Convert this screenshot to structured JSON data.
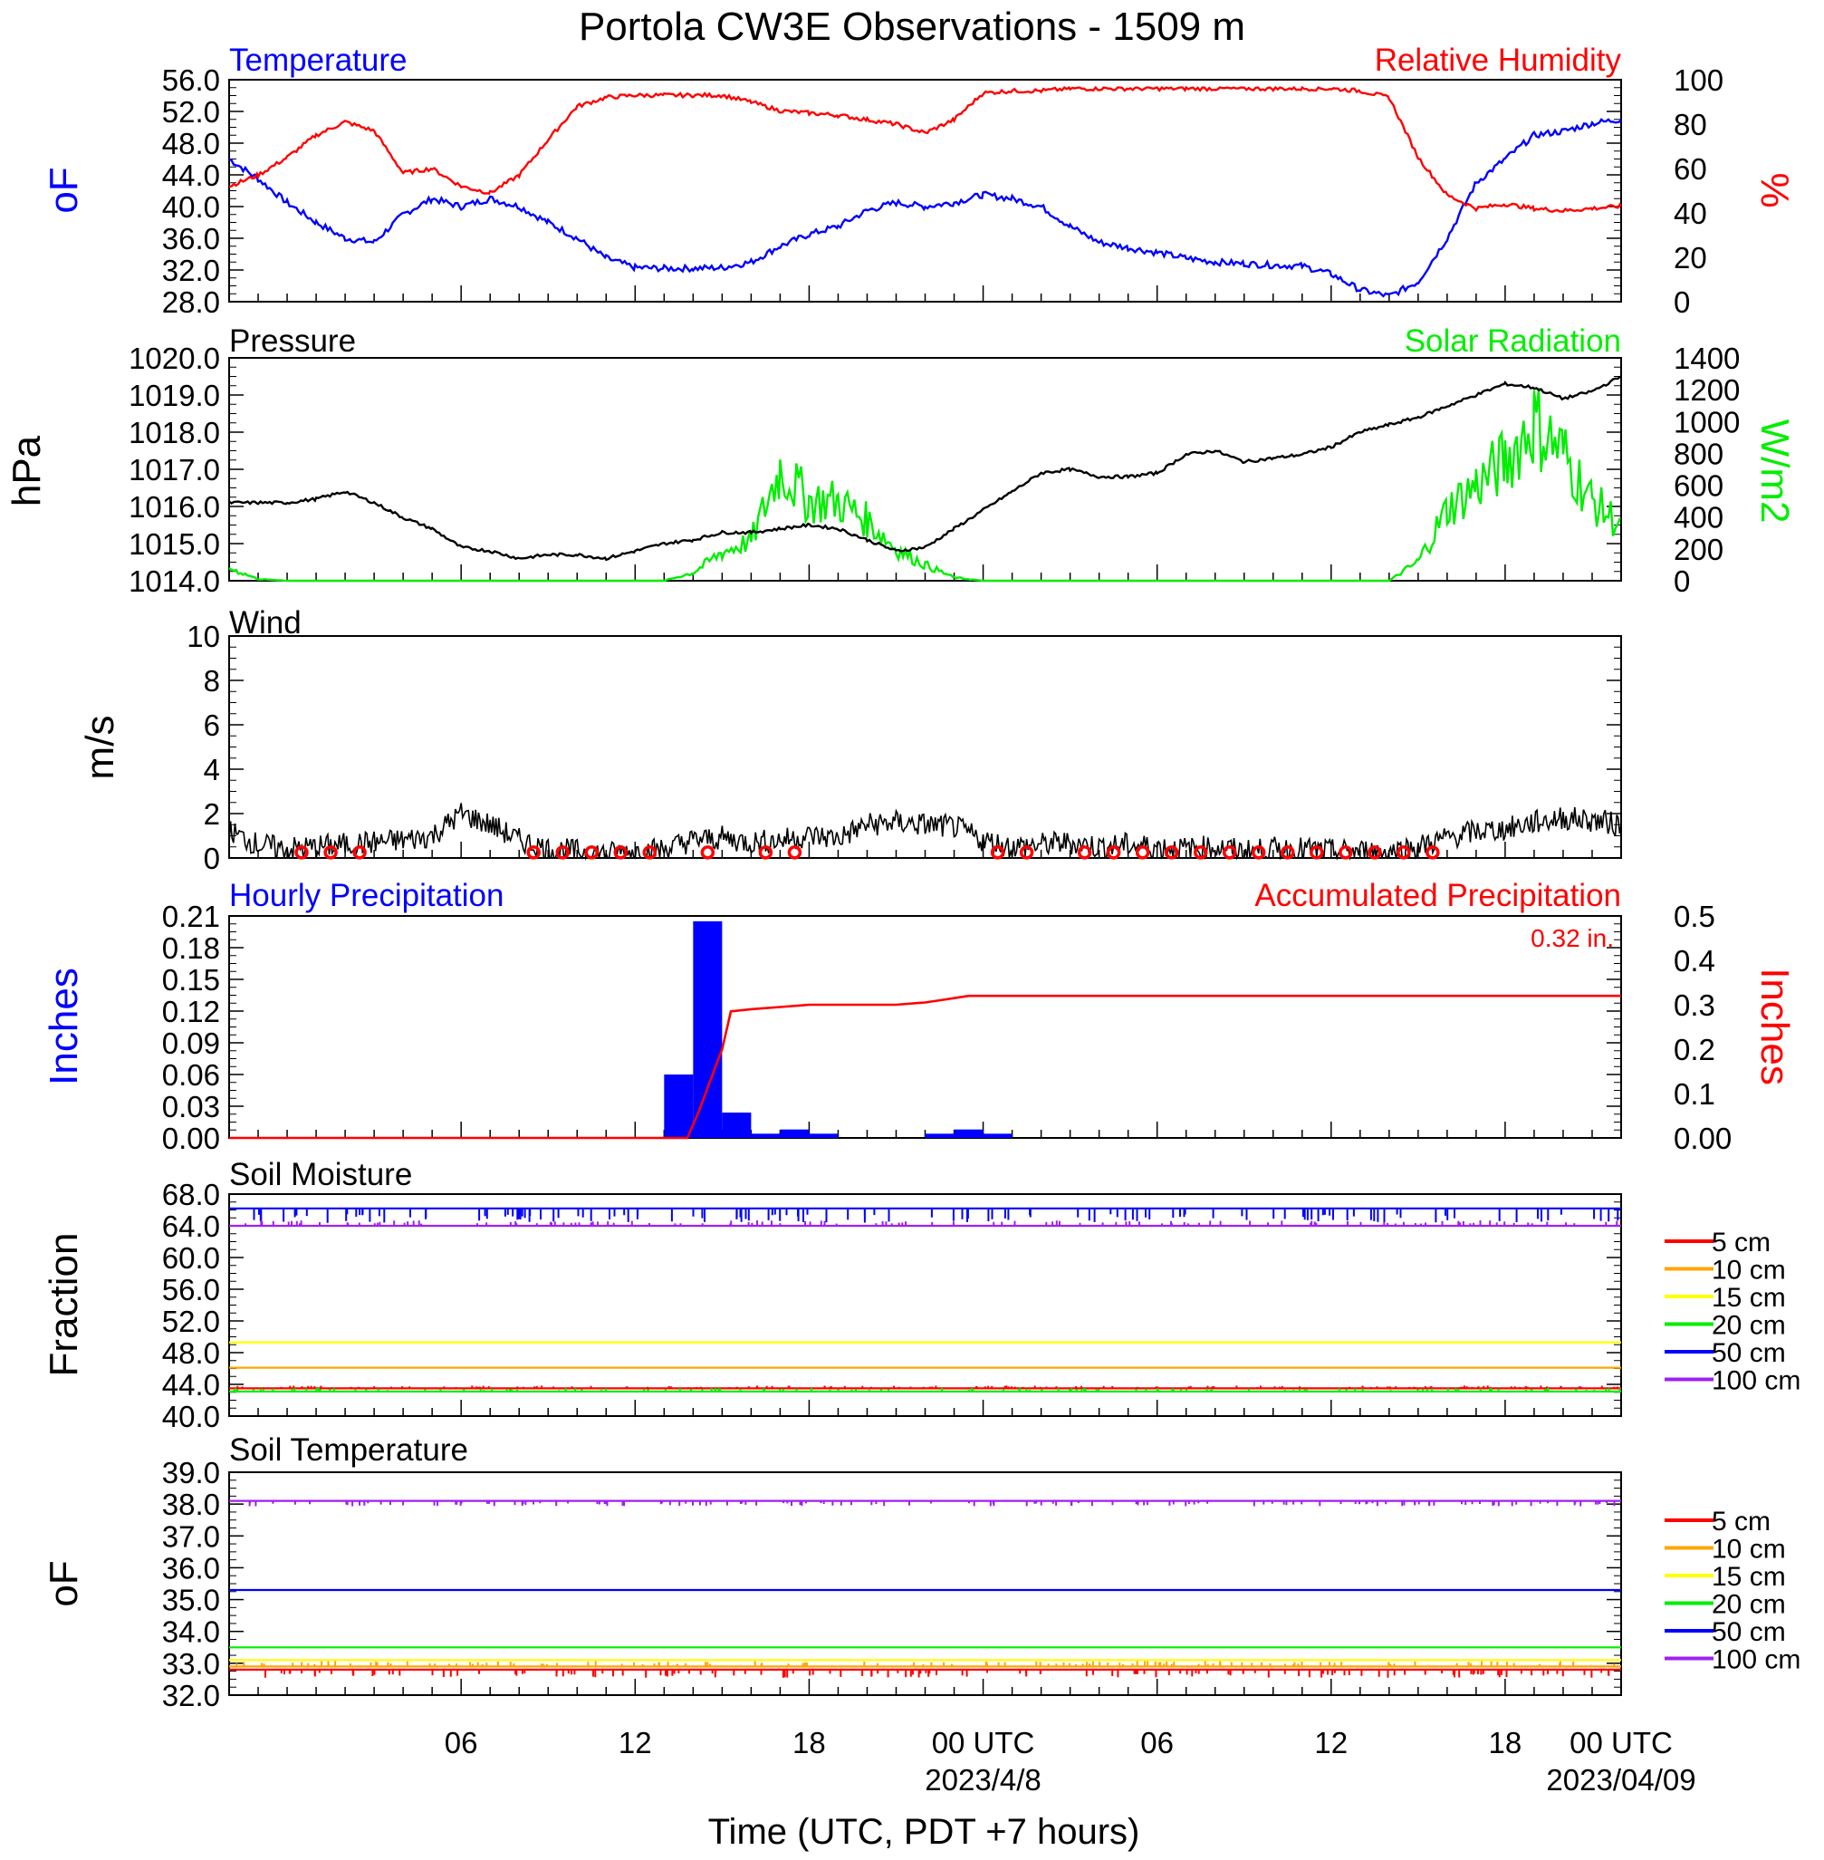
{
  "title": "Portola CW3E Observations - 1509 m",
  "xlabel": "Time (UTC, PDT +7 hours)",
  "x_ticks": [
    {
      "label": "06",
      "date": ""
    },
    {
      "label": "12",
      "date": ""
    },
    {
      "label": "18",
      "date": ""
    },
    {
      "label": "00 UTC",
      "date": "2023/4/8"
    },
    {
      "label": "06",
      "date": ""
    },
    {
      "label": "12",
      "date": ""
    },
    {
      "label": "18",
      "date": ""
    },
    {
      "label": "00 UTC",
      "date": "2023/04/09"
    }
  ],
  "colors": {
    "blue": "#0000ff",
    "red": "#ff0000",
    "green": "#00ee00",
    "black": "#000000",
    "orange": "#ffa500",
    "yellow": "#ffff00",
    "purple": "#a020f0"
  },
  "chart_data": [
    {
      "type": "line",
      "panel": "temperature-humidity",
      "left_title": "Temperature",
      "right_title": "Relative Humidity",
      "ylabel": "oF",
      "y2label": "%",
      "x_hours": [
        0,
        1,
        2,
        3,
        4,
        5,
        6,
        7,
        8,
        9,
        10,
        11,
        12,
        13,
        14,
        15,
        16,
        17,
        18,
        19,
        20,
        21,
        22,
        23,
        24,
        25,
        26,
        27,
        28,
        29,
        30,
        31,
        32,
        33,
        34,
        35,
        36,
        37,
        38,
        39,
        40,
        41,
        42,
        43,
        44,
        45,
        46,
        47,
        48
      ],
      "ylim": [
        28,
        56
      ],
      "yticks": [
        "56.0",
        "52.0",
        "48.0",
        "44.0",
        "40.0",
        "36.0",
        "32.0",
        "28.0"
      ],
      "y2lim": [
        0,
        100
      ],
      "y2ticks": [
        "100",
        "80",
        "60",
        "40",
        "20",
        "0"
      ],
      "series": [
        {
          "name": "Temperature",
          "axis": "left",
          "values": [
            46.0,
            43.5,
            40.5,
            38.0,
            36.0,
            35.5,
            39.0,
            41.0,
            40.0,
            41.0,
            40.0,
            38.0,
            36.0,
            33.5,
            32.3,
            32.2,
            32.2,
            32.3,
            33.0,
            35.0,
            36.5,
            37.5,
            39.5,
            40.5,
            40.0,
            40.5,
            41.5,
            41.0,
            40.0,
            37.5,
            35.5,
            34.8,
            34.2,
            33.5,
            33.0,
            32.8,
            32.6,
            32.5,
            31.5,
            29.5,
            28.7,
            30.5,
            36.0,
            43.0,
            46.0,
            49.0,
            49.5,
            50.5,
            51.0
          ]
        },
        {
          "name": "Relative Humidity",
          "axis": "right",
          "values": [
            52,
            57,
            65,
            75,
            81,
            77,
            58,
            60,
            52,
            49,
            57,
            73,
            88,
            92,
            93,
            93,
            93,
            93,
            90,
            86,
            85,
            84,
            82,
            80,
            76,
            82,
            94,
            95,
            95,
            96,
            96,
            96,
            96,
            96,
            96,
            96,
            96,
            96,
            96,
            95,
            92,
            65,
            48,
            42,
            44,
            42,
            41,
            42,
            43
          ]
        }
      ]
    },
    {
      "type": "line",
      "panel": "pressure-solar",
      "left_title": "Pressure",
      "right_title": "Solar Radiation",
      "ylabel": "hPa",
      "y2label": "W/m2",
      "x_hours": [
        0,
        1,
        2,
        3,
        4,
        5,
        6,
        7,
        8,
        9,
        10,
        11,
        12,
        13,
        14,
        15,
        16,
        17,
        18,
        19,
        20,
        21,
        22,
        23,
        24,
        25,
        26,
        27,
        28,
        29,
        30,
        31,
        32,
        33,
        34,
        35,
        36,
        37,
        38,
        39,
        40,
        41,
        42,
        43,
        44,
        45,
        46,
        47,
        48
      ],
      "ylim": [
        1014,
        1020
      ],
      "yticks": [
        "1020.0",
        "1019.0",
        "1018.0",
        "1017.0",
        "1016.0",
        "1015.0",
        "1014.0"
      ],
      "y2lim": [
        0,
        1400
      ],
      "y2ticks": [
        "1400",
        "1200",
        "1000",
        "800",
        "600",
        "400",
        "200",
        "0"
      ],
      "series": [
        {
          "name": "Pressure",
          "axis": "left",
          "values": [
            1016.1,
            1016.1,
            1016.1,
            1016.2,
            1016.4,
            1016.1,
            1015.7,
            1015.4,
            1014.9,
            1014.8,
            1014.6,
            1014.7,
            1014.7,
            1014.6,
            1014.8,
            1015.0,
            1015.1,
            1015.3,
            1015.3,
            1015.4,
            1015.5,
            1015.4,
            1015.1,
            1014.8,
            1014.9,
            1015.4,
            1015.9,
            1016.4,
            1016.9,
            1017.0,
            1016.8,
            1016.8,
            1016.9,
            1017.4,
            1017.5,
            1017.2,
            1017.3,
            1017.4,
            1017.6,
            1018.0,
            1018.2,
            1018.4,
            1018.7,
            1019.0,
            1019.3,
            1019.2,
            1018.9,
            1019.1,
            1019.5
          ]
        },
        {
          "name": "Solar Radiation",
          "axis": "right",
          "values": [
            80,
            10,
            0,
            0,
            0,
            0,
            0,
            0,
            0,
            0,
            0,
            0,
            0,
            0,
            0,
            0,
            50,
            180,
            250,
            700,
            500,
            500,
            380,
            200,
            100,
            20,
            0,
            0,
            0,
            0,
            0,
            0,
            0,
            0,
            0,
            0,
            0,
            0,
            0,
            0,
            0,
            120,
            450,
            600,
            750,
            1000,
            800,
            500,
            350
          ]
        }
      ]
    },
    {
      "type": "line",
      "panel": "wind",
      "left_title": "Wind",
      "ylabel": "m/s",
      "x_hours": [
        0,
        1,
        2,
        3,
        4,
        5,
        6,
        7,
        8,
        9,
        10,
        11,
        12,
        13,
        14,
        15,
        16,
        17,
        18,
        19,
        20,
        21,
        22,
        23,
        24,
        25,
        26,
        27,
        28,
        29,
        30,
        31,
        32,
        33,
        34,
        35,
        36,
        37,
        38,
        39,
        40,
        41,
        42,
        43,
        44,
        45,
        46,
        47,
        48
      ],
      "ylim": [
        0,
        10
      ],
      "yticks": [
        "10",
        "8",
        "6",
        "4",
        "2",
        "0"
      ],
      "series": [
        {
          "name": "Wind Speed",
          "values": [
            1.2,
            0.6,
            0.4,
            0.5,
            0.6,
            0.7,
            0.8,
            1.0,
            2.0,
            1.5,
            0.8,
            0.4,
            0.3,
            0.2,
            0.3,
            0.4,
            0.8,
            0.9,
            0.7,
            0.8,
            1.0,
            0.9,
            1.5,
            1.6,
            1.5,
            1.4,
            0.8,
            0.5,
            0.6,
            0.7,
            0.5,
            0.6,
            0.5,
            0.4,
            0.5,
            0.3,
            0.4,
            0.4,
            0.3,
            0.3,
            0.3,
            0.5,
            0.9,
            1.2,
            1.3,
            1.6,
            1.8,
            1.7,
            1.5
          ]
        }
      ],
      "calm_hours": [
        2,
        3,
        4,
        10,
        11,
        12,
        13,
        14,
        16,
        18,
        19,
        26,
        27,
        29,
        30,
        31,
        32,
        33,
        34,
        35,
        36,
        37,
        38,
        39,
        40,
        41
      ]
    },
    {
      "type": "bar",
      "panel": "precipitation",
      "left_title": "Hourly Precipitation",
      "right_title": "Accumulated Precipitation",
      "total_label": "0.32 in.",
      "ylabel": "Inches",
      "y2label": "Inches",
      "ylim": [
        0,
        0.21
      ],
      "yticks": [
        "0.21",
        "0.18",
        "0.15",
        "0.12",
        "0.09",
        "0.06",
        "0.03",
        "0.00"
      ],
      "y2lim": [
        0,
        0.5
      ],
      "y2ticks": [
        "0.5",
        "0.4",
        "0.3",
        "0.2",
        "0.1",
        "0.00"
      ],
      "bar_hours": [
        15,
        16,
        17,
        18,
        19,
        20,
        21,
        22,
        23,
        24,
        25,
        26,
        27
      ],
      "bar_values": [
        0.06,
        0.205,
        0.024,
        0.004,
        0.008,
        0.004,
        0,
        0,
        0,
        0.004,
        0.008,
        0.004,
        0
      ],
      "accum_x": [
        0,
        15.8,
        16.2,
        16.6,
        17.0,
        17.3,
        18,
        19,
        20,
        21,
        22,
        23,
        24,
        24.5,
        25,
        25.5,
        26,
        27,
        48
      ],
      "accum_y": [
        0,
        0,
        0.06,
        0.13,
        0.2,
        0.285,
        0.29,
        0.295,
        0.3,
        0.3,
        0.3,
        0.3,
        0.305,
        0.31,
        0.315,
        0.32,
        0.32,
        0.32,
        0.32
      ]
    },
    {
      "type": "line",
      "panel": "soil-moisture",
      "left_title": "Soil Moisture",
      "ylabel": "Fraction",
      "ylim": [
        40,
        68
      ],
      "yticks": [
        "68.0",
        "64.0",
        "60.0",
        "56.0",
        "52.0",
        "48.0",
        "44.0",
        "40.0"
      ],
      "legend": [
        "5 cm",
        "10 cm",
        "15 cm",
        "20 cm",
        "50 cm",
        "100 cm"
      ],
      "series": [
        {
          "name": "5 cm",
          "value": 43.5
        },
        {
          "name": "10 cm",
          "value": 46.1
        },
        {
          "name": "15 cm",
          "value": 49.3
        },
        {
          "name": "20 cm",
          "value": 43.1
        },
        {
          "name": "50 cm",
          "value": 66.2
        },
        {
          "name": "100 cm",
          "value": 64.0
        }
      ]
    },
    {
      "type": "line",
      "panel": "soil-temperature",
      "left_title": "Soil Temperature",
      "ylabel": "oF",
      "ylim": [
        32,
        39
      ],
      "yticks": [
        "39.0",
        "38.0",
        "37.0",
        "36.0",
        "35.0",
        "34.0",
        "33.0",
        "32.0"
      ],
      "legend": [
        "5 cm",
        "10 cm",
        "15 cm",
        "20 cm",
        "50 cm",
        "100 cm"
      ],
      "series": [
        {
          "name": "5 cm",
          "value": 32.8
        },
        {
          "name": "10 cm",
          "value": 32.9
        },
        {
          "name": "15 cm",
          "value": 33.1
        },
        {
          "name": "20 cm",
          "value": 33.5
        },
        {
          "name": "50 cm",
          "value": 35.3
        },
        {
          "name": "100 cm",
          "value": 38.1
        }
      ]
    }
  ]
}
